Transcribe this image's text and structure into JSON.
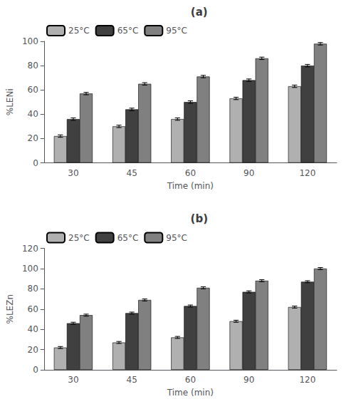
{
  "chart_data": [
    {
      "type": "bar",
      "title": "(a)",
      "xlabel": "Time (min)",
      "ylabel": "%LENi",
      "categories": [
        "30",
        "45",
        "60",
        "90",
        "120"
      ],
      "series": [
        {
          "name": "25°C",
          "color": "#b0b0b0",
          "values": [
            22,
            30,
            36,
            53,
            63
          ],
          "errors": [
            1,
            1,
            1,
            1,
            1
          ]
        },
        {
          "name": "65°C",
          "color": "#404040",
          "values": [
            36,
            44,
            50,
            68,
            80
          ],
          "errors": [
            1,
            1,
            1,
            1,
            1
          ]
        },
        {
          "name": "95°C",
          "color": "#808080",
          "values": [
            57,
            65,
            71,
            86,
            98
          ],
          "errors": [
            1,
            1,
            1,
            1,
            1
          ]
        }
      ],
      "ylim": [
        0,
        100
      ],
      "yticks": [
        0,
        20,
        40,
        60,
        80,
        100
      ],
      "grid": false,
      "legend": "upper left"
    },
    {
      "type": "bar",
      "title": "(b)",
      "xlabel": "Time (min)",
      "ylabel": "%LEZn",
      "categories": [
        "30",
        "45",
        "60",
        "90",
        "120"
      ],
      "series": [
        {
          "name": "25°C",
          "color": "#b0b0b0",
          "values": [
            22,
            27,
            32,
            48,
            62
          ],
          "errors": [
            1,
            1,
            1,
            1,
            1
          ]
        },
        {
          "name": "65°C",
          "color": "#404040",
          "values": [
            46,
            56,
            63,
            77,
            87
          ],
          "errors": [
            1,
            1,
            1,
            1,
            1
          ]
        },
        {
          "name": "95°C",
          "color": "#808080",
          "values": [
            54,
            69,
            81,
            88,
            100
          ],
          "errors": [
            1,
            1,
            1,
            1,
            1
          ]
        }
      ],
      "ylim": [
        0,
        120
      ],
      "yticks": [
        0,
        20,
        40,
        60,
        80,
        100,
        120
      ],
      "grid": false,
      "legend": "upper left"
    }
  ]
}
